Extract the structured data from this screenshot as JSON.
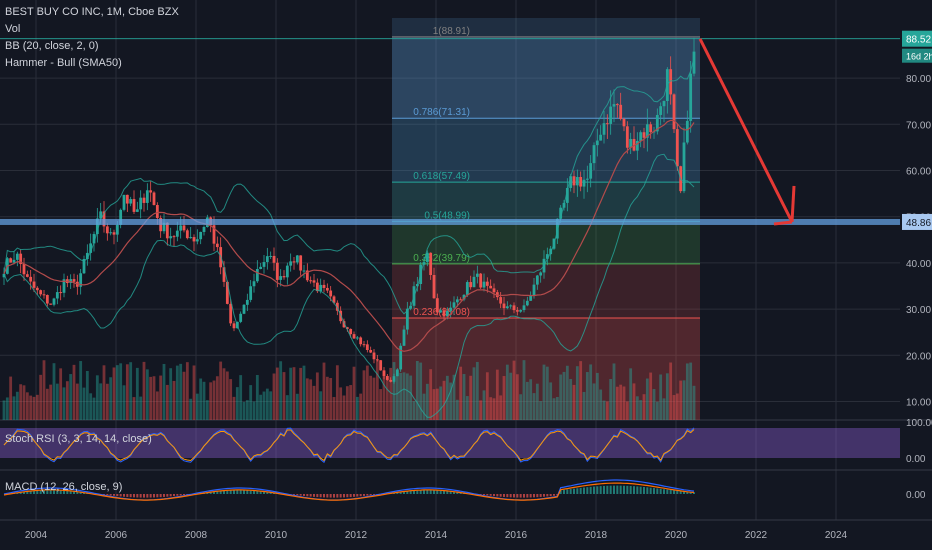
{
  "legend": {
    "title": "BEST BUY CO INC, 1M, Cboe BZX",
    "vol": "Vol",
    "bb": "BB (20, close, 2, 0)",
    "hammer": "Hammer - Bull (SMA50)"
  },
  "stoch_label": "Stoch RSI (3, 3, 14, 14, close)",
  "macd_label": "MACD (12, 26, close, 9)",
  "price_tag": "88.52",
  "time_tag": "16d 2h",
  "level_tag": "48.86",
  "colors": {
    "background": "#131722",
    "up": "#26a69a",
    "down": "#ef5350",
    "fib_blue": "#5b9bd5",
    "stoch_fill": "#7e57c2",
    "arrow": "#e53935",
    "level_line": "#64a0e0"
  },
  "chart_data": {
    "type": "candlestick",
    "x_ticks": [
      "2004",
      "2006",
      "2008",
      "2010",
      "2012",
      "2014",
      "2016",
      "2018",
      "2020",
      "2022",
      "2024"
    ],
    "y_ticks": [
      10.0,
      20.0,
      30.0,
      40.0,
      50.0,
      60.0,
      70.0,
      80.0
    ],
    "ylim": [
      6,
      93
    ],
    "xlim": [
      2003.1,
      2025.6
    ],
    "last_price": 88.52,
    "horizontal_level": 48.86,
    "series_path": [
      [
        2003.2,
        39
      ],
      [
        2003.5,
        42
      ],
      [
        2003.8,
        36
      ],
      [
        2004.1,
        33
      ],
      [
        2004.4,
        31
      ],
      [
        2004.7,
        36
      ],
      [
        2005.0,
        35
      ],
      [
        2005.3,
        42
      ],
      [
        2005.6,
        50
      ],
      [
        2005.9,
        45
      ],
      [
        2006.2,
        55
      ],
      [
        2006.5,
        50
      ],
      [
        2006.8,
        57
      ],
      [
        2007.1,
        48
      ],
      [
        2007.4,
        46
      ],
      [
        2007.7,
        47
      ],
      [
        2008.0,
        45
      ],
      [
        2008.3,
        50
      ],
      [
        2008.6,
        40
      ],
      [
        2008.9,
        25
      ],
      [
        2009.2,
        30
      ],
      [
        2009.5,
        38
      ],
      [
        2009.8,
        42
      ],
      [
        2010.1,
        36
      ],
      [
        2010.4,
        42
      ],
      [
        2010.7,
        38
      ],
      [
        2011.0,
        35
      ],
      [
        2011.3,
        33
      ],
      [
        2011.6,
        28
      ],
      [
        2011.9,
        25
      ],
      [
        2012.2,
        22
      ],
      [
        2012.5,
        19
      ],
      [
        2012.8,
        14
      ],
      [
        2013.0,
        16
      ],
      [
        2013.3,
        30
      ],
      [
        2013.6,
        38
      ],
      [
        2013.8,
        42
      ],
      [
        2014.0,
        30
      ],
      [
        2014.3,
        29
      ],
      [
        2014.6,
        33
      ],
      [
        2015.0,
        37
      ],
      [
        2015.4,
        33
      ],
      [
        2015.8,
        30
      ],
      [
        2016.2,
        30
      ],
      [
        2016.6,
        38
      ],
      [
        2017.0,
        47
      ],
      [
        2017.4,
        58
      ],
      [
        2017.8,
        58
      ],
      [
        2018.1,
        69
      ],
      [
        2018.5,
        75
      ],
      [
        2018.8,
        65
      ],
      [
        2019.1,
        68
      ],
      [
        2019.5,
        70
      ],
      [
        2019.8,
        81
      ],
      [
        2020.1,
        53
      ],
      [
        2020.3,
        75
      ],
      [
        2020.5,
        88.5
      ]
    ],
    "fib_levels": [
      {
        "label": "1(88.91)",
        "value": 88.91
      },
      {
        "label": "0.786(71.31)",
        "value": 71.31
      },
      {
        "label": "0.618(57.49)",
        "value": 57.49
      },
      {
        "label": "0.5(48.99)",
        "value": 48.99
      },
      {
        "label": "0.382(39.79)",
        "value": 39.79
      },
      {
        "label": "0.236(28.08)",
        "value": 28.08
      }
    ],
    "fib_x_range": [
      2012.9,
      2020.6
    ],
    "projection_arrow": {
      "from": [
        2020.6,
        88.5
      ],
      "to": [
        2022.9,
        48.86
      ]
    },
    "stoch_ticks": [
      "100.00",
      "0.00"
    ],
    "macd_ticks": [
      "0.00"
    ]
  }
}
